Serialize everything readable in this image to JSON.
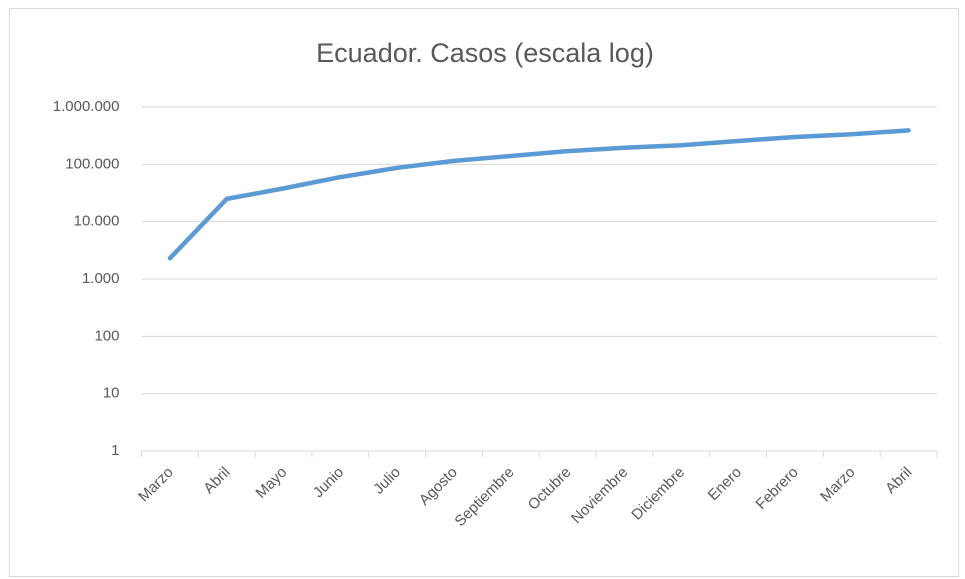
{
  "chart_data": {
    "type": "line",
    "title": "Ecuador. Casos (escala log)",
    "categories": [
      "Marzo",
      "Abril",
      "Mayo",
      "Junio",
      "Julio",
      "Agosto",
      "Septiembre",
      "Octubre",
      "Noviembre",
      "Diciembre",
      "Enero",
      "Febrero",
      "Marzo",
      "Abril"
    ],
    "series": [
      {
        "name": "Casos",
        "color": "#5b9bd5",
        "values": [
          2300,
          25000,
          38000,
          60000,
          87000,
          115000,
          140000,
          170000,
          195000,
          215000,
          255000,
          300000,
          335000,
          390000
        ]
      }
    ],
    "log_scale": true,
    "ylim": [
      1,
      1000000
    ],
    "yticks": [
      1,
      10,
      100,
      {
        "value": 1000,
        "label": "1.000"
      },
      {
        "value": 10000,
        "label": "10.000"
      },
      {
        "value": 100000,
        "label": "100.000"
      },
      {
        "value": 1000000,
        "label": "1.000.000"
      }
    ],
    "grid": true
  }
}
